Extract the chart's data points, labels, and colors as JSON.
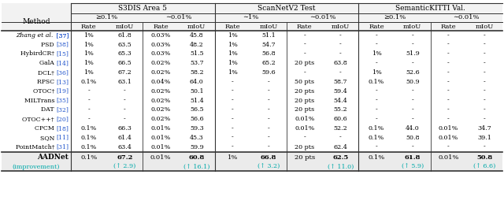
{
  "title_row": [
    "S3DIS Area 5",
    "ScanNetV2 Test",
    "SemanticKITTI Val."
  ],
  "subheader_pairs": [
    "≥0.1%",
    "∼0.01%",
    "∼1%",
    "∼0.01%",
    "≥0.1%",
    "∼0.01%"
  ],
  "methods": [
    [
      "Zhang ",
      "et al.",
      " [37]"
    ],
    [
      "PSD ",
      "",
      "[38]"
    ],
    [
      "HybirdCR† ",
      "",
      "[15]"
    ],
    [
      "GalA ",
      "",
      "[14]"
    ],
    [
      "DCL† ",
      "",
      "[36]"
    ],
    [
      "RPSC ",
      "",
      "[13]"
    ],
    [
      "OTOC† ",
      "",
      "[19]"
    ],
    [
      "MILTrans ",
      "",
      "[35]"
    ],
    [
      "DAT ",
      "",
      "[32]"
    ],
    [
      "OTOC++† ",
      "",
      "[20]"
    ],
    [
      "CPCM ",
      "",
      "[18]"
    ],
    [
      "SQN ",
      "",
      "[11]"
    ],
    [
      "PointMatch† ",
      "",
      "[31]"
    ]
  ],
  "data": [
    [
      "1%",
      "61.8",
      "0.03%",
      "45.8",
      "1%",
      "51.1",
      "-",
      "-",
      "-",
      "-",
      "-",
      "-"
    ],
    [
      "1%",
      "63.5",
      "0.03%",
      "48.2",
      "1%",
      "54.7",
      "-",
      "-",
      "-",
      "-",
      "-",
      "-"
    ],
    [
      "1%",
      "65.3",
      "0.03%",
      "51.5",
      "1%",
      "56.8",
      "-",
      "-",
      "1%",
      "51.9",
      "-",
      "-"
    ],
    [
      "1%",
      "66.5",
      "0.02%",
      "53.7",
      "1%",
      "65.2",
      "20 pts",
      "63.8",
      "-",
      "-",
      "-",
      "-"
    ],
    [
      "1%",
      "67.2",
      "0.02%",
      "58.2",
      "1%",
      "59.6",
      "-",
      "-",
      "1%",
      "52.6",
      "-",
      "-"
    ],
    [
      "0.1%",
      "63.1",
      "0.04%",
      "64.0",
      "-",
      "-",
      "50 pts",
      "58.7",
      "0.1%",
      "50.9",
      "-",
      "-"
    ],
    [
      "-",
      "-",
      "0.02%",
      "50.1",
      "-",
      "-",
      "20 pts",
      "59.4",
      "-",
      "-",
      "-",
      "-"
    ],
    [
      "-",
      "-",
      "0.02%",
      "51.4",
      "-",
      "-",
      "20 pts",
      "54.4",
      "-",
      "-",
      "-",
      "-"
    ],
    [
      "-",
      "-",
      "0.02%",
      "56.5",
      "-",
      "-",
      "20 pts",
      "55.2",
      "-",
      "-",
      "-",
      "-"
    ],
    [
      "-",
      "-",
      "0.02%",
      "56.6",
      "-",
      "-",
      "0.01%",
      "60.6",
      "-",
      "-",
      "-",
      "-"
    ],
    [
      "0.1%",
      "66.3",
      "0.01%",
      "59.3",
      "-",
      "-",
      "0.01%",
      "52.2",
      "0.1%",
      "44.0",
      "0.01%",
      "34.7"
    ],
    [
      "0.1%",
      "61.4",
      "0.01%",
      "45.3",
      "-",
      "-",
      "-",
      "-",
      "0.1%",
      "50.8",
      "0.01%",
      "39.1"
    ],
    [
      "0.1%",
      "63.4",
      "0.01%",
      "59.9",
      "-",
      "-",
      "20 pts",
      "62.4",
      "-",
      "-",
      "-",
      "-"
    ]
  ],
  "aadnet_data": [
    "0.1%",
    "67.2",
    "0.01%",
    "60.8",
    "1%",
    "66.8",
    "20 pts",
    "62.5",
    "0.1%",
    "61.8",
    "0.01%",
    "50.8"
  ],
  "improvement": [
    "",
    "↑2.9)",
    "",
    "↑16.1)",
    "",
    "↑3.2)",
    "",
    "↑11.0)",
    "",
    "↑5.9)",
    "",
    "↑6.6)"
  ],
  "cyan": "#00AAAA",
  "blue": "#2255CC",
  "gray_bg": "#EBEBEB"
}
